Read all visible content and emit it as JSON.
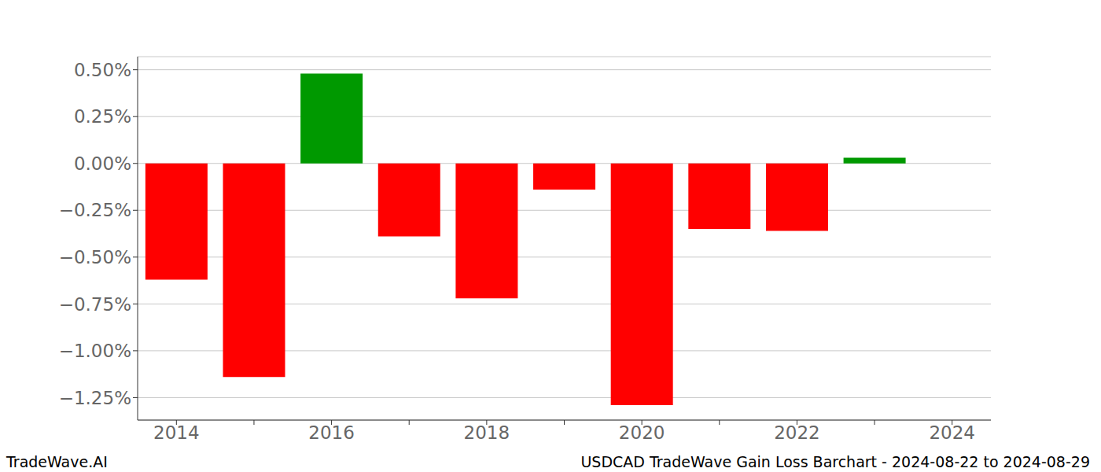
{
  "chart_data": {
    "type": "bar",
    "title": "USDCAD TradeWave Gain Loss Barchart - 2024-08-22 to 2024-08-29",
    "annotations": [
      "TradeWave.AI"
    ],
    "categories": [
      "2014",
      null,
      "2016",
      null,
      "2018",
      null,
      "2020",
      null,
      "2022",
      null,
      "2024"
    ],
    "values": [
      -0.62,
      -1.14,
      0.48,
      -0.39,
      -0.72,
      -0.14,
      -1.29,
      -0.35,
      -0.36,
      0.03,
      null
    ],
    "colors": [
      "#ff0000",
      "#ff0000",
      "#009900",
      "#ff0000",
      "#ff0000",
      "#ff0000",
      "#ff0000",
      "#ff0000",
      "#ff0000",
      "#009900",
      "#ff0000"
    ],
    "ylim": [
      -1.37,
      0.57
    ],
    "yticks": [
      {
        "value": 0.5,
        "label": "0.50%"
      },
      {
        "value": 0.25,
        "label": "0.25%"
      },
      {
        "value": 0,
        "label": "0.00%"
      },
      {
        "value": -0.25,
        "label": "−0.25%"
      },
      {
        "value": -0.5,
        "label": "−0.50%"
      },
      {
        "value": -0.75,
        "label": "−0.75%"
      },
      {
        "value": -1,
        "label": "−1.00%"
      },
      {
        "value": -1.25,
        "label": "−1.25%"
      }
    ],
    "grid": true
  }
}
